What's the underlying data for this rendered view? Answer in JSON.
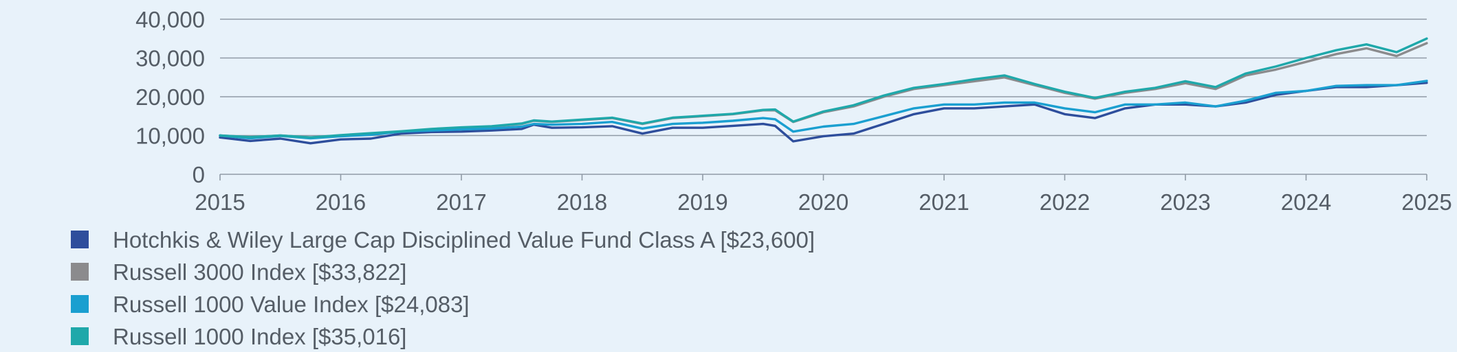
{
  "chart_data": {
    "type": "line",
    "title": "",
    "xlabel": "",
    "ylabel": "",
    "ylim": [
      0,
      40000
    ],
    "y_ticks": [
      {
        "value": 0,
        "label": "0"
      },
      {
        "value": 10000,
        "label": "10,000"
      },
      {
        "value": 20000,
        "label": "20,000"
      },
      {
        "value": 30000,
        "label": "30,000"
      },
      {
        "value": 40000,
        "label": "40,000"
      }
    ],
    "xlim": [
      2015,
      2025
    ],
    "x_ticks": [
      {
        "value": 2015,
        "label": "2015"
      },
      {
        "value": 2016,
        "label": "2016"
      },
      {
        "value": 2017,
        "label": "2017"
      },
      {
        "value": 2018,
        "label": "2018"
      },
      {
        "value": 2019,
        "label": "2019"
      },
      {
        "value": 2020,
        "label": "2020"
      },
      {
        "value": 2021,
        "label": "2021"
      },
      {
        "value": 2022,
        "label": "2022"
      },
      {
        "value": 2023,
        "label": "2023"
      },
      {
        "value": 2024,
        "label": "2024"
      },
      {
        "value": 2025,
        "label": "2025"
      }
    ],
    "grid": "horizontal",
    "legend_position": "bottom",
    "series": [
      {
        "name": "Hotchkis & Wiley Large Cap Disciplined Value Fund Class A [$23,600]",
        "color": "#2e4e9c",
        "points": [
          [
            2015.0,
            9500
          ],
          [
            2015.25,
            8600
          ],
          [
            2015.5,
            9200
          ],
          [
            2015.75,
            8000
          ],
          [
            2016.0,
            9000
          ],
          [
            2016.25,
            9200
          ],
          [
            2016.5,
            10500
          ],
          [
            2016.75,
            10900
          ],
          [
            2017.0,
            11000
          ],
          [
            2017.25,
            11300
          ],
          [
            2017.5,
            11700
          ],
          [
            2017.6,
            12800
          ],
          [
            2017.75,
            12000
          ],
          [
            2018.0,
            12100
          ],
          [
            2018.25,
            12400
          ],
          [
            2018.5,
            10500
          ],
          [
            2018.75,
            12000
          ],
          [
            2019.0,
            12000
          ],
          [
            2019.25,
            12500
          ],
          [
            2019.5,
            13000
          ],
          [
            2019.6,
            12500
          ],
          [
            2019.75,
            8500
          ],
          [
            2020.0,
            9800
          ],
          [
            2020.25,
            10500
          ],
          [
            2020.5,
            13000
          ],
          [
            2020.75,
            15500
          ],
          [
            2021.0,
            17000
          ],
          [
            2021.25,
            17000
          ],
          [
            2021.5,
            17500
          ],
          [
            2021.75,
            18000
          ],
          [
            2022.0,
            15500
          ],
          [
            2022.25,
            14500
          ],
          [
            2022.5,
            17000
          ],
          [
            2022.75,
            18000
          ],
          [
            2023.0,
            18000
          ],
          [
            2023.25,
            17500
          ],
          [
            2023.5,
            18500
          ],
          [
            2023.75,
            20500
          ],
          [
            2024.0,
            21500
          ],
          [
            2024.25,
            22500
          ],
          [
            2024.5,
            22500
          ],
          [
            2024.75,
            23000
          ],
          [
            2025.0,
            23600
          ]
        ]
      },
      {
        "name": "Russell 3000 Index [$33,822]",
        "color": "#8b8b8d",
        "points": [
          [
            2015.0,
            10000
          ],
          [
            2015.25,
            9600
          ],
          [
            2015.5,
            10000
          ],
          [
            2015.75,
            9500
          ],
          [
            2016.0,
            10000
          ],
          [
            2016.25,
            10500
          ],
          [
            2016.5,
            11000
          ],
          [
            2016.75,
            11600
          ],
          [
            2017.0,
            12000
          ],
          [
            2017.25,
            12300
          ],
          [
            2017.5,
            13000
          ],
          [
            2017.6,
            13800
          ],
          [
            2017.75,
            13500
          ],
          [
            2018.0,
            14000
          ],
          [
            2018.25,
            14500
          ],
          [
            2018.5,
            13000
          ],
          [
            2018.75,
            14500
          ],
          [
            2019.0,
            15000
          ],
          [
            2019.25,
            15500
          ],
          [
            2019.5,
            16500
          ],
          [
            2019.6,
            16500
          ],
          [
            2019.75,
            13500
          ],
          [
            2020.0,
            16000
          ],
          [
            2020.25,
            17500
          ],
          [
            2020.5,
            20000
          ],
          [
            2020.75,
            22000
          ],
          [
            2021.0,
            23000
          ],
          [
            2021.25,
            24000
          ],
          [
            2021.5,
            25000
          ],
          [
            2021.75,
            23000
          ],
          [
            2022.0,
            21000
          ],
          [
            2022.25,
            19500
          ],
          [
            2022.5,
            21000
          ],
          [
            2022.75,
            22000
          ],
          [
            2023.0,
            23500
          ],
          [
            2023.25,
            22000
          ],
          [
            2023.5,
            25500
          ],
          [
            2023.75,
            27000
          ],
          [
            2024.0,
            29000
          ],
          [
            2024.25,
            31000
          ],
          [
            2024.5,
            32500
          ],
          [
            2024.75,
            30500
          ],
          [
            2025.0,
            33822
          ]
        ]
      },
      {
        "name": "Russell 1000 Value Index [$24,083]",
        "color": "#1a9fd0",
        "points": [
          [
            2015.0,
            10000
          ],
          [
            2015.25,
            9300
          ],
          [
            2015.5,
            9900
          ],
          [
            2015.75,
            9300
          ],
          [
            2016.0,
            9800
          ],
          [
            2016.25,
            10200
          ],
          [
            2016.5,
            11000
          ],
          [
            2016.75,
            11300
          ],
          [
            2017.0,
            11600
          ],
          [
            2017.25,
            11800
          ],
          [
            2017.5,
            12300
          ],
          [
            2017.6,
            13000
          ],
          [
            2017.75,
            12800
          ],
          [
            2018.0,
            13000
          ],
          [
            2018.25,
            13500
          ],
          [
            2018.5,
            11800
          ],
          [
            2018.75,
            13000
          ],
          [
            2019.0,
            13300
          ],
          [
            2019.25,
            13800
          ],
          [
            2019.5,
            14500
          ],
          [
            2019.6,
            14200
          ],
          [
            2019.75,
            11000
          ],
          [
            2020.0,
            12300
          ],
          [
            2020.25,
            13000
          ],
          [
            2020.5,
            15000
          ],
          [
            2020.75,
            17000
          ],
          [
            2021.0,
            18000
          ],
          [
            2021.25,
            18000
          ],
          [
            2021.5,
            18500
          ],
          [
            2021.75,
            18500
          ],
          [
            2022.0,
            17000
          ],
          [
            2022.25,
            16000
          ],
          [
            2022.5,
            18000
          ],
          [
            2022.75,
            18000
          ],
          [
            2023.0,
            18500
          ],
          [
            2023.25,
            17500
          ],
          [
            2023.5,
            19000
          ],
          [
            2023.75,
            21000
          ],
          [
            2024.0,
            21500
          ],
          [
            2024.25,
            22800
          ],
          [
            2024.5,
            23000
          ],
          [
            2024.75,
            23000
          ],
          [
            2025.0,
            24083
          ]
        ]
      },
      {
        "name": "Russell 1000 Index [$35,016]",
        "color": "#1fa8aa",
        "points": [
          [
            2015.0,
            10000
          ],
          [
            2015.25,
            9600
          ],
          [
            2015.5,
            10000
          ],
          [
            2015.75,
            9500
          ],
          [
            2016.0,
            10100
          ],
          [
            2016.25,
            10600
          ],
          [
            2016.5,
            11100
          ],
          [
            2016.75,
            11700
          ],
          [
            2017.0,
            12100
          ],
          [
            2017.25,
            12400
          ],
          [
            2017.5,
            13100
          ],
          [
            2017.6,
            13900
          ],
          [
            2017.75,
            13600
          ],
          [
            2018.0,
            14100
          ],
          [
            2018.25,
            14600
          ],
          [
            2018.5,
            13100
          ],
          [
            2018.75,
            14600
          ],
          [
            2019.0,
            15100
          ],
          [
            2019.25,
            15600
          ],
          [
            2019.5,
            16600
          ],
          [
            2019.6,
            16700
          ],
          [
            2019.75,
            13600
          ],
          [
            2020.0,
            16200
          ],
          [
            2020.25,
            17800
          ],
          [
            2020.5,
            20300
          ],
          [
            2020.75,
            22300
          ],
          [
            2021.0,
            23300
          ],
          [
            2021.25,
            24500
          ],
          [
            2021.5,
            25500
          ],
          [
            2021.75,
            23300
          ],
          [
            2022.0,
            21300
          ],
          [
            2022.25,
            19700
          ],
          [
            2022.5,
            21300
          ],
          [
            2022.75,
            22300
          ],
          [
            2023.0,
            24000
          ],
          [
            2023.25,
            22500
          ],
          [
            2023.5,
            26000
          ],
          [
            2023.75,
            27800
          ],
          [
            2024.0,
            30000
          ],
          [
            2024.25,
            32000
          ],
          [
            2024.5,
            33500
          ],
          [
            2024.75,
            31500
          ],
          [
            2025.0,
            35016
          ]
        ]
      }
    ]
  }
}
